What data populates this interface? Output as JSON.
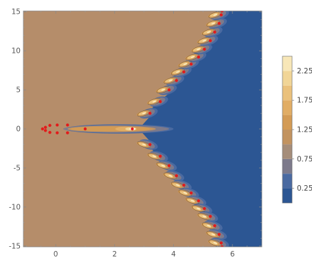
{
  "chart_data": {
    "type": "contour",
    "title": "",
    "xlabel": "",
    "ylabel": "",
    "xlim": [
      -1.1,
      7.0
    ],
    "ylim": [
      -15.1,
      15.1
    ],
    "x_ticks": [
      0,
      2,
      4,
      6
    ],
    "y_ticks": [
      -15,
      -10,
      -5,
      0,
      5,
      10,
      15
    ],
    "x_tick_labels": [
      "0",
      "2",
      "4",
      "6"
    ],
    "y_tick_labels": [
      "-15",
      "-10",
      "-5",
      "0",
      "5",
      "10",
      "15"
    ],
    "legend": {
      "placement": "right",
      "levels": [
        0.0,
        0.25,
        0.5,
        0.75,
        1.0,
        1.25,
        1.5,
        1.75,
        2.0,
        2.25,
        2.5
      ],
      "labels": [
        "0.25",
        "0.75",
        "1.25",
        "1.75",
        "2.25"
      ],
      "label_values": [
        0.25,
        0.75,
        1.25,
        1.75,
        2.25
      ],
      "colors": [
        "#2c5693",
        "#4a6aa1",
        "#7d7a8b",
        "#a58d7a",
        "#c29360",
        "#d39b55",
        "#e1ad65",
        "#eac17c",
        "#f1d597",
        "#f8e7b8"
      ]
    },
    "background_level_color": "#b58d6a",
    "region_right_color": "#2c5693",
    "marker_color": "#e21b1b",
    "points_left": [
      [
        -0.45,
        0.0
      ],
      [
        -0.35,
        0.2
      ],
      [
        -0.35,
        -0.2
      ],
      [
        -0.2,
        0.45
      ],
      [
        -0.2,
        -0.45
      ],
      [
        0.05,
        0.5
      ],
      [
        0.05,
        -0.5
      ],
      [
        0.4,
        0.5
      ],
      [
        0.4,
        -0.5
      ],
      [
        1.0,
        0.0
      ],
      [
        2.6,
        0.0
      ]
    ],
    "points_upper": [
      [
        3.2,
        2.0
      ],
      [
        3.55,
        3.5
      ],
      [
        3.85,
        5.0
      ],
      [
        4.1,
        6.2
      ],
      [
        4.35,
        7.3
      ],
      [
        4.6,
        8.3
      ],
      [
        4.85,
        9.2
      ],
      [
        5.05,
        10.2
      ],
      [
        5.25,
        11.3
      ],
      [
        5.4,
        12.4
      ],
      [
        5.55,
        13.5
      ],
      [
        5.62,
        14.6
      ]
    ],
    "points_lower": [
      [
        3.2,
        -2.0
      ],
      [
        3.55,
        -3.5
      ],
      [
        3.85,
        -4.7
      ],
      [
        4.1,
        -6.0
      ],
      [
        4.35,
        -7.2
      ],
      [
        4.6,
        -8.2
      ],
      [
        4.85,
        -9.2
      ],
      [
        5.05,
        -10.2
      ],
      [
        5.25,
        -11.2
      ],
      [
        5.4,
        -12.4
      ],
      [
        5.55,
        -13.5
      ],
      [
        5.62,
        -14.6
      ]
    ],
    "boundary_right": [
      [
        2.9,
        0.0
      ],
      [
        3.1,
        1.5
      ],
      [
        3.4,
        3.0
      ],
      [
        3.75,
        4.5
      ],
      [
        4.0,
        5.8
      ],
      [
        4.25,
        7.0
      ],
      [
        4.5,
        8.0
      ],
      [
        4.75,
        9.0
      ],
      [
        4.95,
        10.0
      ],
      [
        5.15,
        11.1
      ],
      [
        5.3,
        12.2
      ],
      [
        5.45,
        13.3
      ],
      [
        5.55,
        14.4
      ],
      [
        5.6,
        15.1
      ]
    ]
  }
}
